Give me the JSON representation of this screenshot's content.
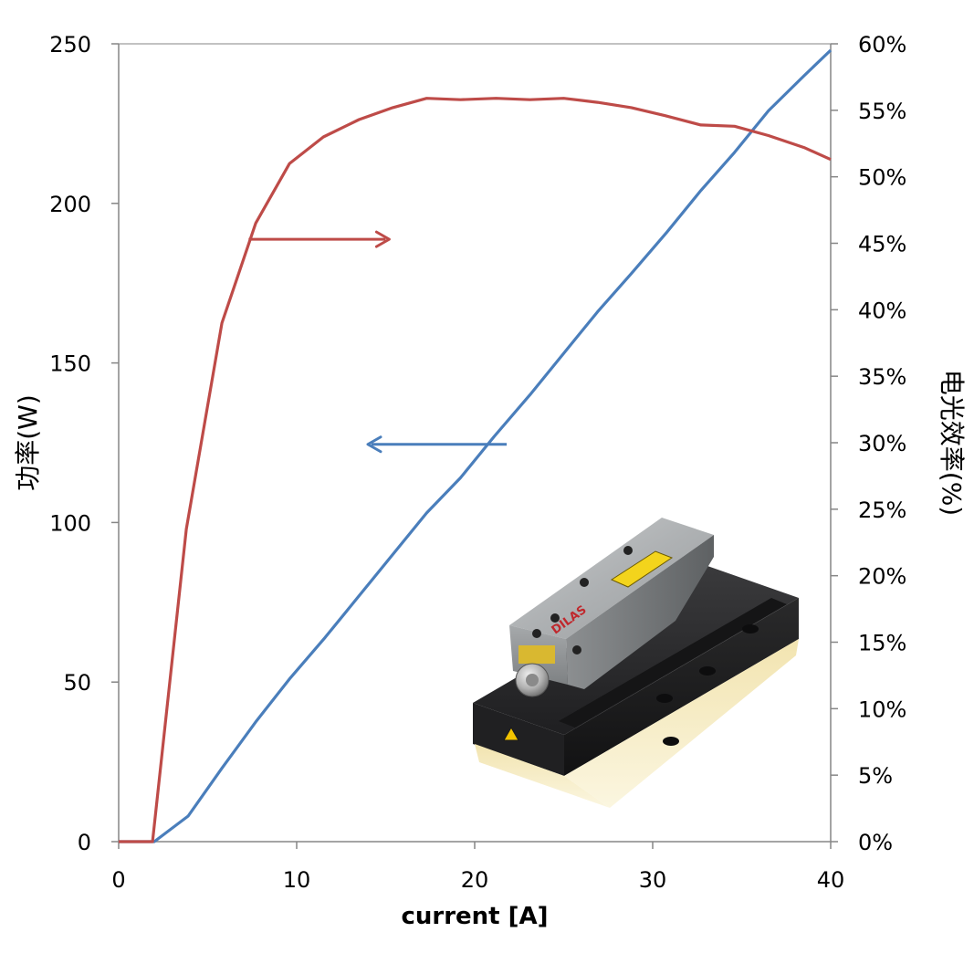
{
  "chart_data": {
    "type": "line",
    "title": "",
    "xlabel": "current [A]",
    "ylabel_left": "功率(W)",
    "ylabel_right": "电光效率(%)",
    "xlim": [
      0,
      40
    ],
    "ylim_left": [
      0,
      250
    ],
    "ylim_right": [
      0,
      60
    ],
    "x_ticks": [
      "0",
      "10",
      "20",
      "30",
      "40"
    ],
    "y_left_ticks": [
      "0",
      "50",
      "100",
      "150",
      "200",
      "250"
    ],
    "y_right_ticks": [
      "0%",
      "5%",
      "10%",
      "15%",
      "20%",
      "25%",
      "30%",
      "35%",
      "40%",
      "45%",
      "50%",
      "55%",
      "60%"
    ],
    "grid": false,
    "legend": "none",
    "series": [
      {
        "axis": "left",
        "color": "#4a7ebb",
        "points": [
          [
            0,
            0
          ],
          [
            2,
            0
          ],
          [
            3.9,
            8
          ],
          [
            5.8,
            23
          ],
          [
            7.7,
            37.5
          ],
          [
            9.6,
            51
          ],
          [
            11.6,
            64
          ],
          [
            13.5,
            77
          ],
          [
            15.4,
            90
          ],
          [
            17.3,
            103
          ],
          [
            19.2,
            114
          ],
          [
            21.1,
            127
          ],
          [
            23.1,
            140
          ],
          [
            25,
            153
          ],
          [
            26.9,
            166
          ],
          [
            28.8,
            178
          ],
          [
            30.8,
            191
          ],
          [
            32.7,
            204
          ],
          [
            34.6,
            216
          ],
          [
            36.5,
            229
          ],
          [
            38.5,
            240
          ],
          [
            40,
            248
          ]
        ]
      },
      {
        "axis": "right",
        "color": "#be4b48",
        "points": [
          [
            0,
            0
          ],
          [
            1.9,
            0
          ],
          [
            3.8,
            23.5
          ],
          [
            5.8,
            39
          ],
          [
            7.7,
            46.5
          ],
          [
            9.6,
            51
          ],
          [
            11.5,
            53
          ],
          [
            13.5,
            54.3
          ],
          [
            15.4,
            55.2
          ],
          [
            17.3,
            55.9
          ],
          [
            19.2,
            55.8
          ],
          [
            21.2,
            55.9
          ],
          [
            23.1,
            55.8
          ],
          [
            25,
            55.9
          ],
          [
            26.9,
            55.6
          ],
          [
            28.8,
            55.2
          ],
          [
            30.7,
            54.6
          ],
          [
            32.7,
            53.9
          ],
          [
            34.6,
            53.8
          ],
          [
            36.5,
            53.1
          ],
          [
            38.5,
            52.2
          ],
          [
            40,
            51.3
          ]
        ]
      }
    ],
    "annotations": [
      {
        "color": "#be4b48",
        "from": [
          7.3,
          45.3
        ],
        "to": [
          15.2,
          45.3
        ],
        "axis": "right",
        "direction": "points-right"
      },
      {
        "color": "#4a7ebb",
        "from": [
          21.8,
          124.5
        ],
        "to": [
          14,
          124.5
        ],
        "axis": "left",
        "direction": "points-left"
      }
    ]
  },
  "inset": {
    "logo_text": "DILAS"
  }
}
